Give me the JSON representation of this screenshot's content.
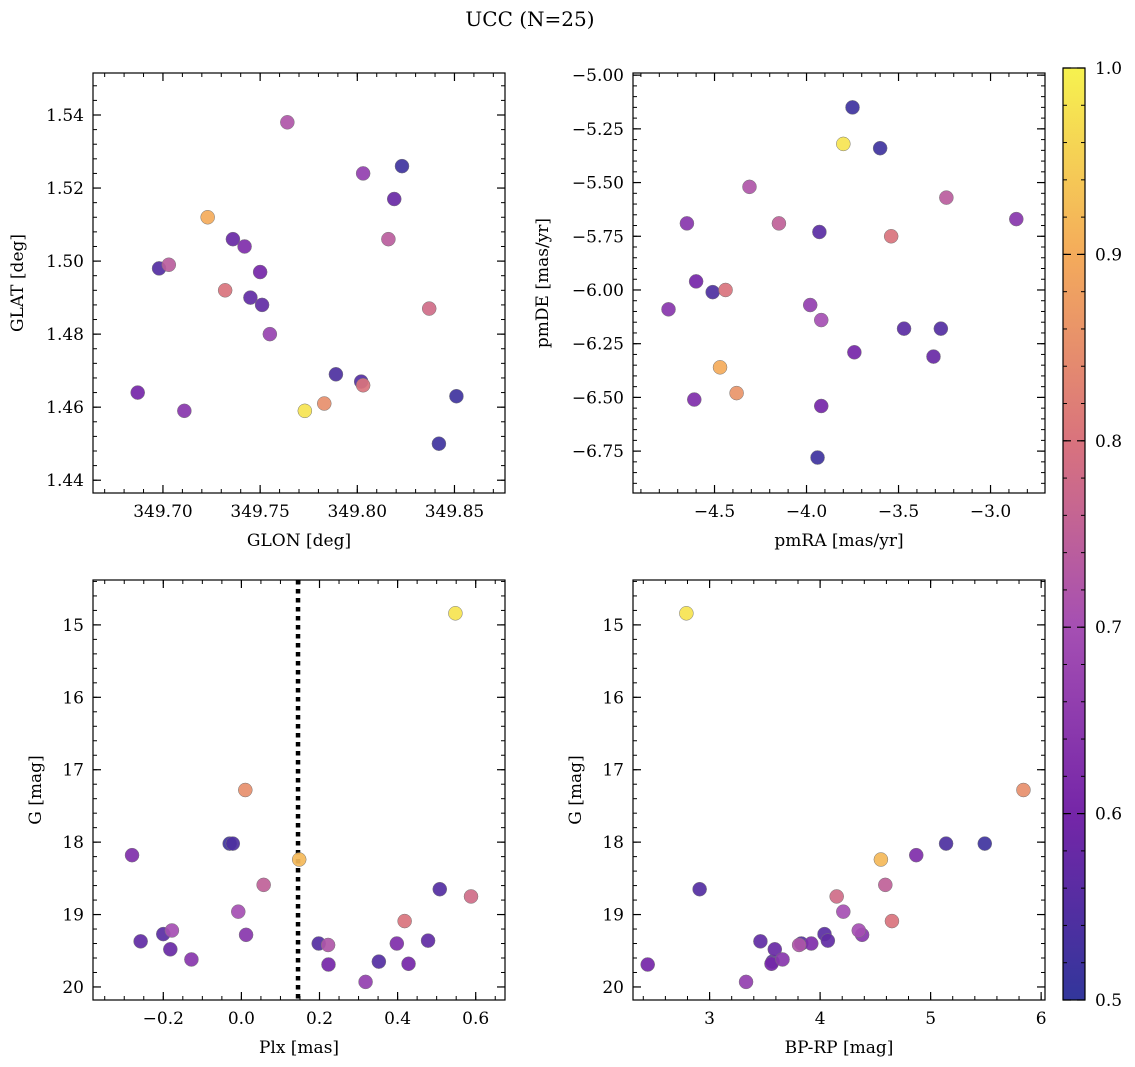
{
  "figure": {
    "title": "UCC (N=25)"
  },
  "chart_data": [
    {
      "type": "scatter",
      "id": "glon-glat",
      "xlabel": "GLON [deg]",
      "ylabel": "GLAT [deg]",
      "xlim": [
        349.664,
        349.876
      ],
      "ylim": [
        1.4365,
        1.5515
      ],
      "invert_y": false,
      "xticks": [
        {
          "v": 349.7,
          "t": "349.70"
        },
        {
          "v": 349.75,
          "t": "349.75"
        },
        {
          "v": 349.8,
          "t": "349.80"
        },
        {
          "v": 349.85,
          "t": "349.85"
        }
      ],
      "yticks": [
        {
          "v": 1.44,
          "t": "1.44"
        },
        {
          "v": 1.46,
          "t": "1.46"
        },
        {
          "v": 1.48,
          "t": "1.48"
        },
        {
          "v": 1.5,
          "t": "1.50"
        },
        {
          "v": 1.52,
          "t": "1.52"
        },
        {
          "v": 1.54,
          "t": "1.54"
        }
      ],
      "x_minor_step": 0.01,
      "y_minor_step": 0.004,
      "points": [
        {
          "x": 349.764,
          "y": 1.538,
          "c": 0.72
        },
        {
          "x": 349.723,
          "y": 1.512,
          "c": 0.9
        },
        {
          "x": 349.823,
          "y": 1.526,
          "c": 0.52
        },
        {
          "x": 349.803,
          "y": 1.524,
          "c": 0.66
        },
        {
          "x": 349.819,
          "y": 1.517,
          "c": 0.58
        },
        {
          "x": 349.736,
          "y": 1.506,
          "c": 0.58
        },
        {
          "x": 349.816,
          "y": 1.506,
          "c": 0.74
        },
        {
          "x": 349.742,
          "y": 1.504,
          "c": 0.62
        },
        {
          "x": 349.698,
          "y": 1.498,
          "c": 0.55
        },
        {
          "x": 349.703,
          "y": 1.499,
          "c": 0.74
        },
        {
          "x": 349.75,
          "y": 1.497,
          "c": 0.6
        },
        {
          "x": 349.732,
          "y": 1.492,
          "c": 0.8
        },
        {
          "x": 349.745,
          "y": 1.49,
          "c": 0.57
        },
        {
          "x": 349.751,
          "y": 1.488,
          "c": 0.57
        },
        {
          "x": 349.837,
          "y": 1.487,
          "c": 0.78
        },
        {
          "x": 349.755,
          "y": 1.48,
          "c": 0.67
        },
        {
          "x": 349.789,
          "y": 1.469,
          "c": 0.54
        },
        {
          "x": 349.802,
          "y": 1.467,
          "c": 0.55
        },
        {
          "x": 349.803,
          "y": 1.466,
          "c": 0.8
        },
        {
          "x": 349.687,
          "y": 1.464,
          "c": 0.6
        },
        {
          "x": 349.851,
          "y": 1.463,
          "c": 0.52
        },
        {
          "x": 349.783,
          "y": 1.461,
          "c": 0.85
        },
        {
          "x": 349.773,
          "y": 1.459,
          "c": 0.98
        },
        {
          "x": 349.711,
          "y": 1.459,
          "c": 0.64
        },
        {
          "x": 349.842,
          "y": 1.45,
          "c": 0.52
        }
      ]
    },
    {
      "type": "scatter",
      "id": "pmra-pmde",
      "xlabel": "pmRA [mas/yr]",
      "ylabel": "pmDE [mas/yr]",
      "xlim": [
        -4.943,
        -2.704
      ],
      "ylim": [
        -6.945,
        -4.99
      ],
      "invert_y": false,
      "xticks": [
        {
          "v": -4.5,
          "t": "−4.5"
        },
        {
          "v": -4.0,
          "t": "−4.0"
        },
        {
          "v": -3.5,
          "t": "−3.5"
        },
        {
          "v": -3.0,
          "t": "−3.0"
        }
      ],
      "yticks": [
        {
          "v": -6.75,
          "t": "−6.75"
        },
        {
          "v": -6.5,
          "t": "−6.50"
        },
        {
          "v": -6.25,
          "t": "−6.25"
        },
        {
          "v": -6.0,
          "t": "−6.00"
        },
        {
          "v": -5.75,
          "t": "−5.75"
        },
        {
          "v": -5.5,
          "t": "−5.50"
        },
        {
          "v": -5.25,
          "t": "−5.25"
        },
        {
          "v": -5.0,
          "t": "−5.00"
        }
      ],
      "x_minor_step": 0.1,
      "y_minor_step": 0.05,
      "points": [
        {
          "x": -3.75,
          "y": -5.15,
          "c": 0.52
        },
        {
          "x": -3.8,
          "y": -5.32,
          "c": 0.98
        },
        {
          "x": -3.6,
          "y": -5.34,
          "c": 0.52
        },
        {
          "x": -4.31,
          "y": -5.52,
          "c": 0.72
        },
        {
          "x": -3.24,
          "y": -5.57,
          "c": 0.74
        },
        {
          "x": -4.65,
          "y": -5.69,
          "c": 0.64
        },
        {
          "x": -4.15,
          "y": -5.69,
          "c": 0.75
        },
        {
          "x": -3.93,
          "y": -5.73,
          "c": 0.56
        },
        {
          "x": -3.54,
          "y": -5.75,
          "c": 0.8
        },
        {
          "x": -2.86,
          "y": -5.67,
          "c": 0.64
        },
        {
          "x": -4.6,
          "y": -5.96,
          "c": 0.6
        },
        {
          "x": -4.51,
          "y": -6.01,
          "c": 0.54
        },
        {
          "x": -4.44,
          "y": -6.0,
          "c": 0.8
        },
        {
          "x": -4.75,
          "y": -6.09,
          "c": 0.64
        },
        {
          "x": -3.98,
          "y": -6.07,
          "c": 0.66
        },
        {
          "x": -3.92,
          "y": -6.14,
          "c": 0.7
        },
        {
          "x": -3.47,
          "y": -6.18,
          "c": 0.56
        },
        {
          "x": -3.27,
          "y": -6.18,
          "c": 0.55
        },
        {
          "x": -3.74,
          "y": -6.29,
          "c": 0.6
        },
        {
          "x": -3.31,
          "y": -6.31,
          "c": 0.58
        },
        {
          "x": -4.47,
          "y": -6.36,
          "c": 0.9
        },
        {
          "x": -4.38,
          "y": -6.48,
          "c": 0.86
        },
        {
          "x": -4.61,
          "y": -6.51,
          "c": 0.62
        },
        {
          "x": -3.92,
          "y": -6.54,
          "c": 0.6
        },
        {
          "x": -3.94,
          "y": -6.78,
          "c": 0.52
        }
      ]
    },
    {
      "type": "scatter",
      "id": "plx-g",
      "xlabel": "Plx [mas]",
      "ylabel": "G [mag]",
      "xlim": [
        -0.38,
        0.675
      ],
      "ylim": [
        20.18,
        14.38
      ],
      "invert_y": true,
      "vline": {
        "x": 0.145,
        "style": "dotted"
      },
      "xticks": [
        {
          "v": -0.2,
          "t": "−0.2"
        },
        {
          "v": 0.0,
          "t": "0.0"
        },
        {
          "v": 0.2,
          "t": "0.2"
        },
        {
          "v": 0.4,
          "t": "0.4"
        },
        {
          "v": 0.6,
          "t": "0.6"
        }
      ],
      "yticks": [
        {
          "v": 15,
          "t": "15"
        },
        {
          "v": 16,
          "t": "16"
        },
        {
          "v": 17,
          "t": "17"
        },
        {
          "v": 18,
          "t": "18"
        },
        {
          "v": 19,
          "t": "19"
        },
        {
          "v": 20,
          "t": "20"
        }
      ],
      "x_minor_step": 0.05,
      "y_minor_step": 0.2,
      "points": [
        {
          "x": 0.548,
          "y": 14.84,
          "c": 0.98
        },
        {
          "x": 0.01,
          "y": 17.28,
          "c": 0.85
        },
        {
          "x": -0.03,
          "y": 18.02,
          "c": 0.52
        },
        {
          "x": -0.022,
          "y": 18.02,
          "c": 0.54
        },
        {
          "x": -0.28,
          "y": 18.18,
          "c": 0.62
        },
        {
          "x": 0.148,
          "y": 18.24,
          "c": 0.92
        },
        {
          "x": 0.057,
          "y": 18.59,
          "c": 0.75
        },
        {
          "x": 0.508,
          "y": 18.65,
          "c": 0.55
        },
        {
          "x": 0.588,
          "y": 18.75,
          "c": 0.78
        },
        {
          "x": -0.008,
          "y": 18.96,
          "c": 0.7
        },
        {
          "x": 0.418,
          "y": 19.09,
          "c": 0.8
        },
        {
          "x": -0.178,
          "y": 19.22,
          "c": 0.7
        },
        {
          "x": -0.2,
          "y": 19.27,
          "c": 0.56
        },
        {
          "x": 0.012,
          "y": 19.28,
          "c": 0.64
        },
        {
          "x": -0.258,
          "y": 19.37,
          "c": 0.57
        },
        {
          "x": 0.478,
          "y": 19.36,
          "c": 0.57
        },
        {
          "x": 0.198,
          "y": 19.4,
          "c": 0.55
        },
        {
          "x": 0.398,
          "y": 19.4,
          "c": 0.62
        },
        {
          "x": 0.222,
          "y": 19.42,
          "c": 0.72
        },
        {
          "x": -0.182,
          "y": 19.48,
          "c": 0.58
        },
        {
          "x": -0.128,
          "y": 19.62,
          "c": 0.64
        },
        {
          "x": 0.352,
          "y": 19.65,
          "c": 0.55
        },
        {
          "x": 0.223,
          "y": 19.69,
          "c": 0.6
        },
        {
          "x": 0.428,
          "y": 19.68,
          "c": 0.6
        },
        {
          "x": 0.318,
          "y": 19.93,
          "c": 0.66
        }
      ]
    },
    {
      "type": "scatter",
      "id": "bprp-g",
      "xlabel": "BP-RP [mag]",
      "ylabel": "G [mag]",
      "xlim": [
        2.307,
        6.035
      ],
      "ylim": [
        20.18,
        14.38
      ],
      "invert_y": true,
      "xticks": [
        {
          "v": 3,
          "t": "3"
        },
        {
          "v": 4,
          "t": "4"
        },
        {
          "v": 5,
          "t": "5"
        },
        {
          "v": 6,
          "t": "6"
        }
      ],
      "yticks": [
        {
          "v": 15,
          "t": "15"
        },
        {
          "v": 16,
          "t": "16"
        },
        {
          "v": 17,
          "t": "17"
        },
        {
          "v": 18,
          "t": "18"
        },
        {
          "v": 19,
          "t": "19"
        },
        {
          "v": 20,
          "t": "20"
        }
      ],
      "x_minor_step": 0.2,
      "y_minor_step": 0.2,
      "points": [
        {
          "x": 2.79,
          "y": 14.84,
          "c": 0.98
        },
        {
          "x": 5.84,
          "y": 17.28,
          "c": 0.85
        },
        {
          "x": 5.14,
          "y": 18.02,
          "c": 0.54
        },
        {
          "x": 5.49,
          "y": 18.02,
          "c": 0.52
        },
        {
          "x": 4.87,
          "y": 18.18,
          "c": 0.62
        },
        {
          "x": 4.55,
          "y": 18.24,
          "c": 0.92
        },
        {
          "x": 4.59,
          "y": 18.59,
          "c": 0.75
        },
        {
          "x": 2.91,
          "y": 18.65,
          "c": 0.55
        },
        {
          "x": 4.15,
          "y": 18.75,
          "c": 0.78
        },
        {
          "x": 4.21,
          "y": 18.96,
          "c": 0.7
        },
        {
          "x": 4.65,
          "y": 19.09,
          "c": 0.8
        },
        {
          "x": 4.35,
          "y": 19.22,
          "c": 0.7
        },
        {
          "x": 4.04,
          "y": 19.27,
          "c": 0.56
        },
        {
          "x": 4.38,
          "y": 19.28,
          "c": 0.64
        },
        {
          "x": 3.46,
          "y": 19.37,
          "c": 0.57
        },
        {
          "x": 4.07,
          "y": 19.36,
          "c": 0.57
        },
        {
          "x": 3.83,
          "y": 19.4,
          "c": 0.55
        },
        {
          "x": 3.92,
          "y": 19.4,
          "c": 0.62
        },
        {
          "x": 3.81,
          "y": 19.42,
          "c": 0.72
        },
        {
          "x": 3.59,
          "y": 19.48,
          "c": 0.58
        },
        {
          "x": 3.66,
          "y": 19.62,
          "c": 0.64
        },
        {
          "x": 3.57,
          "y": 19.65,
          "c": 0.55
        },
        {
          "x": 2.44,
          "y": 19.69,
          "c": 0.6
        },
        {
          "x": 3.56,
          "y": 19.68,
          "c": 0.6
        },
        {
          "x": 3.33,
          "y": 19.93,
          "c": 0.66
        }
      ]
    }
  ],
  "colorbar": {
    "colormap": "plasma",
    "min": 0.5,
    "max": 1.0,
    "ticks": [
      {
        "v": 0.5,
        "t": "0.5"
      },
      {
        "v": 0.6,
        "t": "0.6"
      },
      {
        "v": 0.7,
        "t": "0.7"
      },
      {
        "v": 0.8,
        "t": "0.8"
      },
      {
        "v": 0.9,
        "t": "0.9"
      },
      {
        "v": 1.0,
        "t": "1.0"
      }
    ],
    "minor_step": 0.02,
    "stops": [
      "#32369b",
      "#7526a8",
      "#a54fb3",
      "#d9737d",
      "#f4ab5b",
      "#f6f24f"
    ]
  }
}
